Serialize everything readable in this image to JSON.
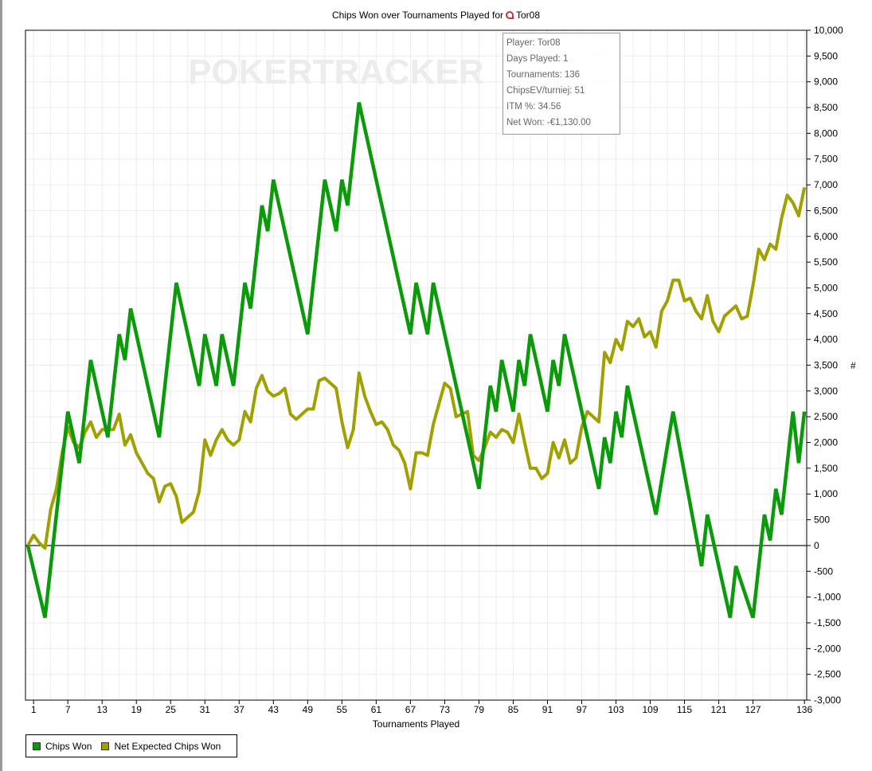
{
  "title": {
    "prefix": "Chips Won over Tournaments Played for",
    "player": "Tor08"
  },
  "watermark": "POKERTRACKER",
  "tooltip": [
    "Player: Tor08",
    "Days Played: 1",
    "Tournaments: 136",
    "ChipsEV/turniej: 51",
    "ITM %: 34.56",
    "Net Won: -€1,130.00"
  ],
  "legend": [
    {
      "label": "Chips Won",
      "color": "#0a9a0a"
    },
    {
      "label": "Net Expected Chips Won",
      "color": "#a0a000"
    }
  ],
  "chart_data": {
    "type": "line",
    "title": "Chips Won over Tournaments Played for Tor08",
    "xlabel": "Tournaments Played",
    "ylabel": "#",
    "xlim": [
      0,
      136
    ],
    "ylim": [
      -3000,
      10000
    ],
    "x_ticks": [
      1,
      7,
      13,
      19,
      25,
      31,
      37,
      43,
      49,
      55,
      61,
      67,
      73,
      79,
      85,
      91,
      97,
      103,
      109,
      115,
      121,
      127,
      136
    ],
    "y_ticks": [
      10000,
      9500,
      9000,
      8500,
      8000,
      7500,
      7000,
      6500,
      6000,
      5500,
      5000,
      4500,
      4000,
      3500,
      3000,
      2500,
      2000,
      1500,
      1000,
      500,
      0,
      -500,
      -1000,
      -1500,
      -2000,
      -2500,
      -3000
    ],
    "y_tick_labels": [
      "10,000",
      "9,500",
      "9,000",
      "8,500",
      "8,000",
      "7,500",
      "7,000",
      "6,500",
      "6,000",
      "5,500",
      "5,000",
      "4,500",
      "4,000",
      "3,500",
      "3,000",
      "2,500",
      "2,000",
      "1,500",
      "1,000",
      "500",
      "0",
      "-500",
      "-1,000",
      "-1,500",
      "-2,000",
      "-2,500",
      "-3,000"
    ],
    "grid": true,
    "legend_position": "bottom-left",
    "series": [
      {
        "name": "Chips Won",
        "color": "#0a9a0a",
        "points": [
          [
            0,
            0
          ],
          [
            3,
            -1400
          ],
          [
            7,
            2600
          ],
          [
            9,
            1600
          ],
          [
            11,
            3600
          ],
          [
            14,
            2100
          ],
          [
            16,
            4100
          ],
          [
            17,
            3600
          ],
          [
            18,
            4600
          ],
          [
            23,
            2100
          ],
          [
            26,
            5100
          ],
          [
            30,
            3100
          ],
          [
            31,
            4100
          ],
          [
            33,
            3100
          ],
          [
            34,
            4100
          ],
          [
            36,
            3100
          ],
          [
            38,
            5100
          ],
          [
            39,
            4600
          ],
          [
            41,
            6600
          ],
          [
            42,
            6100
          ],
          [
            43,
            7100
          ],
          [
            49,
            4100
          ],
          [
            52,
            7100
          ],
          [
            54,
            6100
          ],
          [
            55,
            7100
          ],
          [
            56,
            6600
          ],
          [
            58,
            8600
          ],
          [
            67,
            4100
          ],
          [
            68,
            5100
          ],
          [
            70,
            4100
          ],
          [
            71,
            5100
          ],
          [
            79,
            1100
          ],
          [
            81,
            3100
          ],
          [
            82,
            2600
          ],
          [
            83,
            3600
          ],
          [
            85,
            2600
          ],
          [
            86,
            3600
          ],
          [
            87,
            3100
          ],
          [
            88,
            4100
          ],
          [
            91,
            2600
          ],
          [
            92,
            3600
          ],
          [
            93,
            3100
          ],
          [
            94,
            4100
          ],
          [
            100,
            1100
          ],
          [
            101,
            2100
          ],
          [
            102,
            1600
          ],
          [
            103,
            2600
          ],
          [
            104,
            2100
          ],
          [
            105,
            3100
          ],
          [
            110,
            600
          ],
          [
            113,
            2600
          ],
          [
            118,
            -400
          ],
          [
            119,
            600
          ],
          [
            123,
            -1400
          ],
          [
            124,
            -400
          ],
          [
            127,
            -1400
          ],
          [
            129,
            600
          ],
          [
            130,
            100
          ],
          [
            131,
            1100
          ],
          [
            132,
            600
          ],
          [
            134,
            2600
          ],
          [
            135,
            1600
          ],
          [
            136,
            2600
          ]
        ]
      },
      {
        "name": "Net Expected Chips Won",
        "color": "#a0a000",
        "values": [
          0,
          200,
          50,
          -50,
          700,
          1100,
          1800,
          2300,
          2000,
          1900,
          2200,
          2400,
          2100,
          2250,
          2250,
          2250,
          2550,
          1950,
          2150,
          1800,
          1600,
          1400,
          1300,
          850,
          1150,
          1200,
          950,
          450,
          550,
          650,
          1050,
          2050,
          1750,
          2050,
          2250,
          2050,
          1950,
          2050,
          2600,
          2400,
          3050,
          3300,
          3000,
          2900,
          2950,
          3050,
          2550,
          2450,
          2550,
          2650,
          2650,
          3200,
          3250,
          3150,
          3050,
          2400,
          1900,
          2250,
          3350,
          2900,
          2600,
          2350,
          2400,
          2250,
          1950,
          1850,
          1600,
          1100,
          1800,
          1800,
          1750,
          2350,
          2750,
          3150,
          3050,
          2500,
          2550,
          2600,
          1750,
          1650,
          1900,
          2200,
          2100,
          2250,
          2200,
          2000,
          2550,
          2000,
          1500,
          1500,
          1300,
          1400,
          2000,
          1700,
          2050,
          1600,
          1700,
          2300,
          2600,
          2500,
          2400,
          3750,
          3550,
          4000,
          3800,
          4350,
          4250,
          4400,
          4050,
          4150,
          3850,
          4550,
          4750,
          5150,
          5150,
          4750,
          4800,
          4550,
          4400,
          4850,
          4350,
          4150,
          4450,
          4550,
          4650,
          4400,
          4450,
          5050,
          5750,
          5550,
          5850,
          5750,
          6350,
          6800,
          6650,
          6400,
          6950
        ]
      }
    ]
  }
}
